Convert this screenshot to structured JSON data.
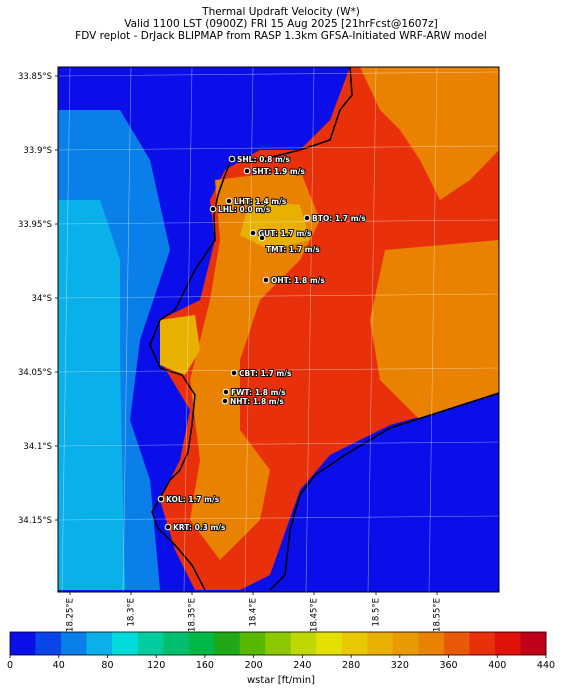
{
  "header": {
    "line1": "Thermal Updraft Velocity (W*)",
    "line2": "Valid 1100 LST (0900Z) FRI 15 Aug 2025 [21hrFcst@1607z]",
    "line3": "FDV replot - DrJack BLIPMAP from RASP 1.3km GFSA-Initiated WRF-ARW model"
  },
  "lat_ticks": [
    "33.85°S",
    "33.9°S",
    "33.95°S",
    "34°S",
    "34.05°S",
    "34.1°S",
    "34.15°S"
  ],
  "lon_ticks": [
    "18.25°E",
    "18.3°E",
    "18.35°E",
    "18.4°E",
    "18.45°E",
    "18.5°E",
    "18.55°E"
  ],
  "stations": [
    {
      "code": "SHL",
      "label": "SHL: 0.8 m/s"
    },
    {
      "code": "SHT",
      "label": "SHT: 1.9 m/s"
    },
    {
      "code": "LHT",
      "label": "LHT: 1.4 m/s"
    },
    {
      "code": "LHL",
      "label": "LHL: 0.0 m/s"
    },
    {
      "code": "BTO",
      "label": "BTO: 1.7 m/s"
    },
    {
      "code": "GUT",
      "label": "GUT: 1.7 m/s"
    },
    {
      "code": "TMT",
      "label": "TMT: 1.7 m/s"
    },
    {
      "code": "OHT",
      "label": "OHT: 1.8 m/s"
    },
    {
      "code": "CBT",
      "label": "CBT: 1.7 m/s"
    },
    {
      "code": "FWT",
      "label": "FWT: 1.8 m/s"
    },
    {
      "code": "NHT",
      "label": "NHT: 1.8 m/s"
    },
    {
      "code": "KOL",
      "label": "KOL: 1.7 m/s"
    },
    {
      "code": "KRT",
      "label": "KRT: 0.3 m/s"
    }
  ],
  "colorbar": {
    "label": "wstar [ft/min]",
    "ticks": [
      "0",
      "40",
      "80",
      "120",
      "160",
      "200",
      "240",
      "280",
      "320",
      "360",
      "400",
      "440"
    ],
    "colors": [
      "#0a0fea",
      "#0a45ea",
      "#0a7fea",
      "#0ab0ea",
      "#00dcdc",
      "#00cca0",
      "#00c070",
      "#00b848",
      "#20a818",
      "#58b800",
      "#8cc800",
      "#c0d800",
      "#e6e000",
      "#e8c800",
      "#e8b000",
      "#e89a00",
      "#e88200",
      "#e85a0a",
      "#e8300a",
      "#e0100a",
      "#c00018"
    ]
  },
  "map": {
    "colors": {
      "sea_far": "#0a0fea",
      "sea_mid": "#0a7fea",
      "sea_near": "#0ab0ea",
      "land_hot": "#e8300a",
      "land_warm": "#e88200",
      "land_mid": "#e8b000"
    }
  }
}
